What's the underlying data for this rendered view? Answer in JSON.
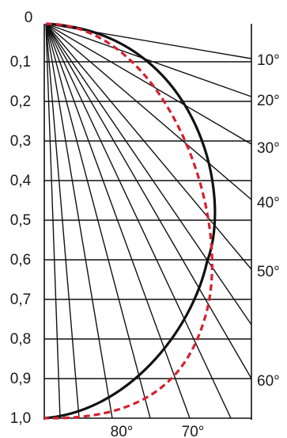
{
  "diagram": {
    "depth_labels": [
      "0",
      "0,1",
      "0,2",
      "0,3",
      "0,4",
      "0,5",
      "0,6",
      "0,7",
      "0,8",
      "0,9",
      "1,0"
    ],
    "ray_labels_right": [
      "10°",
      "20°",
      "30°",
      "40°",
      "50°",
      "60°"
    ],
    "ray_labels_bottom": [
      "80°",
      "70°"
    ],
    "colors": {
      "lines": "#111111",
      "solid_curve": "#111111",
      "dashed_curve": "#d42030",
      "background": "#ffffff"
    }
  }
}
